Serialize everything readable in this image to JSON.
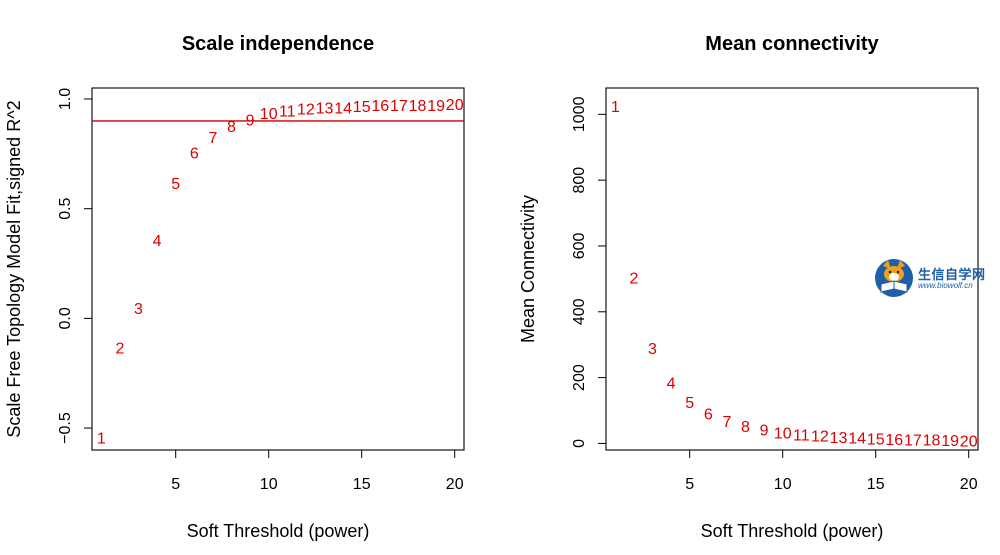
{
  "chart_data": [
    {
      "type": "scatter",
      "marker": "text-labels",
      "title": "Scale independence",
      "xlabel": "Soft Threshold (power)",
      "ylabel": "Scale Free Topology Model Fit,signed R^2",
      "xlim": [
        0.5,
        20.5
      ],
      "ylim": [
        -0.6,
        1.05
      ],
      "xticks": [
        5,
        10,
        15,
        20
      ],
      "yticks": [
        -0.5,
        0.0,
        0.5,
        1.0
      ],
      "xtick_labels": [
        "5",
        "10",
        "15",
        "20"
      ],
      "ytick_labels": [
        "−0.5",
        "0.0",
        "0.5",
        "1.0"
      ],
      "hline": 0.9,
      "hline_color": "#cc0000",
      "point_color": "#dd0000",
      "points": [
        {
          "label": "1",
          "x": 1,
          "y": -0.55
        },
        {
          "label": "2",
          "x": 2,
          "y": -0.14
        },
        {
          "label": "3",
          "x": 3,
          "y": 0.04
        },
        {
          "label": "4",
          "x": 4,
          "y": 0.35
        },
        {
          "label": "5",
          "x": 5,
          "y": 0.61
        },
        {
          "label": "6",
          "x": 6,
          "y": 0.75
        },
        {
          "label": "7",
          "x": 7,
          "y": 0.82
        },
        {
          "label": "8",
          "x": 8,
          "y": 0.87
        },
        {
          "label": "9",
          "x": 9,
          "y": 0.9
        },
        {
          "label": "10",
          "x": 10,
          "y": 0.93
        },
        {
          "label": "11",
          "x": 11,
          "y": 0.94
        },
        {
          "label": "12",
          "x": 12,
          "y": 0.95
        },
        {
          "label": "13",
          "x": 13,
          "y": 0.955
        },
        {
          "label": "14",
          "x": 14,
          "y": 0.955
        },
        {
          "label": "15",
          "x": 15,
          "y": 0.96
        },
        {
          "label": "16",
          "x": 16,
          "y": 0.965
        },
        {
          "label": "17",
          "x": 17,
          "y": 0.965
        },
        {
          "label": "18",
          "x": 18,
          "y": 0.965
        },
        {
          "label": "19",
          "x": 19,
          "y": 0.965
        },
        {
          "label": "20",
          "x": 20,
          "y": 0.97
        }
      ]
    },
    {
      "type": "scatter",
      "marker": "text-labels",
      "title": "Mean connectivity",
      "xlabel": "Soft Threshold (power)",
      "ylabel": "Mean Connectivity",
      "xlim": [
        0.5,
        20.5
      ],
      "ylim": [
        -20,
        1080
      ],
      "xticks": [
        5,
        10,
        15,
        20
      ],
      "yticks": [
        0,
        200,
        400,
        600,
        800,
        1000
      ],
      "xtick_labels": [
        "5",
        "10",
        "15",
        "20"
      ],
      "ytick_labels": [
        "0",
        "200",
        "400",
        "600",
        "800",
        "1000"
      ],
      "point_color": "#dd0000",
      "points": [
        {
          "label": "1",
          "x": 1,
          "y": 1020
        },
        {
          "label": "2",
          "x": 2,
          "y": 500
        },
        {
          "label": "3",
          "x": 3,
          "y": 285
        },
        {
          "label": "4",
          "x": 4,
          "y": 180
        },
        {
          "label": "5",
          "x": 5,
          "y": 122
        },
        {
          "label": "6",
          "x": 6,
          "y": 86
        },
        {
          "label": "7",
          "x": 7,
          "y": 63
        },
        {
          "label": "8",
          "x": 8,
          "y": 48
        },
        {
          "label": "9",
          "x": 9,
          "y": 37
        },
        {
          "label": "10",
          "x": 10,
          "y": 29
        },
        {
          "label": "11",
          "x": 11,
          "y": 23
        },
        {
          "label": "12",
          "x": 12,
          "y": 19
        },
        {
          "label": "13",
          "x": 13,
          "y": 15
        },
        {
          "label": "14",
          "x": 14,
          "y": 13
        },
        {
          "label": "15",
          "x": 15,
          "y": 11
        },
        {
          "label": "16",
          "x": 16,
          "y": 9
        },
        {
          "label": "17",
          "x": 17,
          "y": 8
        },
        {
          "label": "18",
          "x": 18,
          "y": 7
        },
        {
          "label": "19",
          "x": 19,
          "y": 6
        },
        {
          "label": "20",
          "x": 20,
          "y": 5
        }
      ]
    }
  ],
  "watermark": {
    "text": "生信自学网",
    "url": "www.biowolf.cn",
    "icon": "fox-reading-book-icon",
    "accent": "#1f5fa8"
  }
}
